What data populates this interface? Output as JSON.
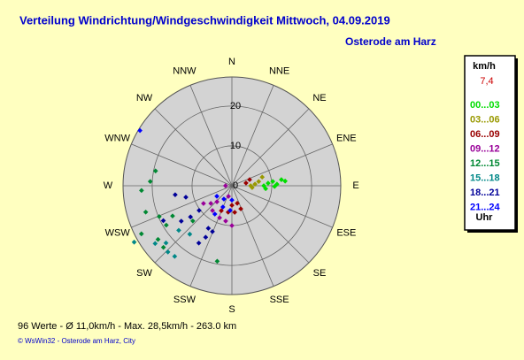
{
  "chart_data": {
    "type": "polar_scatter",
    "title": "Verteilung Windrichtung/Windgeschwindigkeit  Mittwoch, 04.09.2019",
    "subtitle": "Osterode am Harz",
    "direction_labels": [
      "N",
      "NNE",
      "NE",
      "ENE",
      "E",
      "ESE",
      "SE",
      "SSE",
      "S",
      "SSW",
      "SW",
      "WSW",
      "W",
      "WNW",
      "NW",
      "NNW"
    ],
    "rlim": [
      0,
      27.3
    ],
    "rticks": [
      0,
      10,
      20
    ],
    "legend_header": "km/h",
    "legend_value": "7,4",
    "legend_footer": "Uhr",
    "series": [
      {
        "name": "00...03",
        "color": "#00dd00",
        "x": [
          90,
          86,
          84,
          88,
          83,
          85,
          95,
          91
        ],
        "values": [
          8.0,
          9.1,
          10.3,
          11.3,
          12.5,
          13.4,
          8.5,
          10.7
        ]
      },
      {
        "name": "03...06",
        "color": "#999900",
        "x": [
          90,
          86,
          81,
          74,
          95
        ],
        "values": [
          4.7,
          5.8,
          6.8,
          7.9,
          5.1
        ]
      },
      {
        "name": "06...09",
        "color": "#990000",
        "x": [
          79,
          71,
          163,
          180,
          159,
          174,
          188,
          203
        ],
        "values": [
          3.6,
          4.7,
          4.6,
          4.9,
          6.2,
          6.7,
          6.7,
          6.8
        ]
      },
      {
        "name": "09...12",
        "color": "#990099",
        "x": [
          270,
          198,
          223,
          230,
          201,
          180,
          190,
          238,
          218
        ],
        "values": [
          1.6,
          2.8,
          5.5,
          6.9,
          8.6,
          10.0,
          9.0,
          8.4,
          7.9
        ]
      },
      {
        "name": "12...15",
        "color": "#008833",
        "x": [
          281,
          267,
          273,
          253,
          247,
          243,
          242,
          234,
          239,
          191,
          228,
          228
        ],
        "values": [
          19.5,
          22.7,
          20.5,
          22.6,
          19.8,
          16.7,
          25.7,
          22.9,
          19.2,
          19.3,
          13.2,
          23.1
        ]
      },
      {
        "name": "15...18",
        "color": "#008888",
        "x": [
          240,
          233,
          224,
          230,
          221,
          219,
          229
        ],
        "values": [
          28.3,
          24.1,
          23.1,
          17.4,
          16.1,
          22.8,
          21.9
        ]
      },
      {
        "name": "18...21",
        "color": "#000099",
        "x": [
          261,
          256,
          243,
          235,
          233,
          209,
          207,
          233,
          210,
          203
        ],
        "values": [
          14.4,
          11.9,
          19.3,
          15.5,
          10.3,
          12.2,
          14.5,
          13.0,
          16.6,
          12.5
        ]
      },
      {
        "name": "21...24",
        "color": "#0000ff",
        "x": [
          301,
          235,
          211,
          180,
          184,
          211,
          203
        ],
        "values": [
          26.9,
          4.6,
          3.9,
          3.6,
          6.2,
          8.3,
          5.8
        ]
      }
    ],
    "footer": "96 Werte   -   Ø 11,0km/h  -  Max. 28,5km/h   -   263.0 km",
    "copyright": "© WsWin32  -  Osterode am Harz, City"
  }
}
